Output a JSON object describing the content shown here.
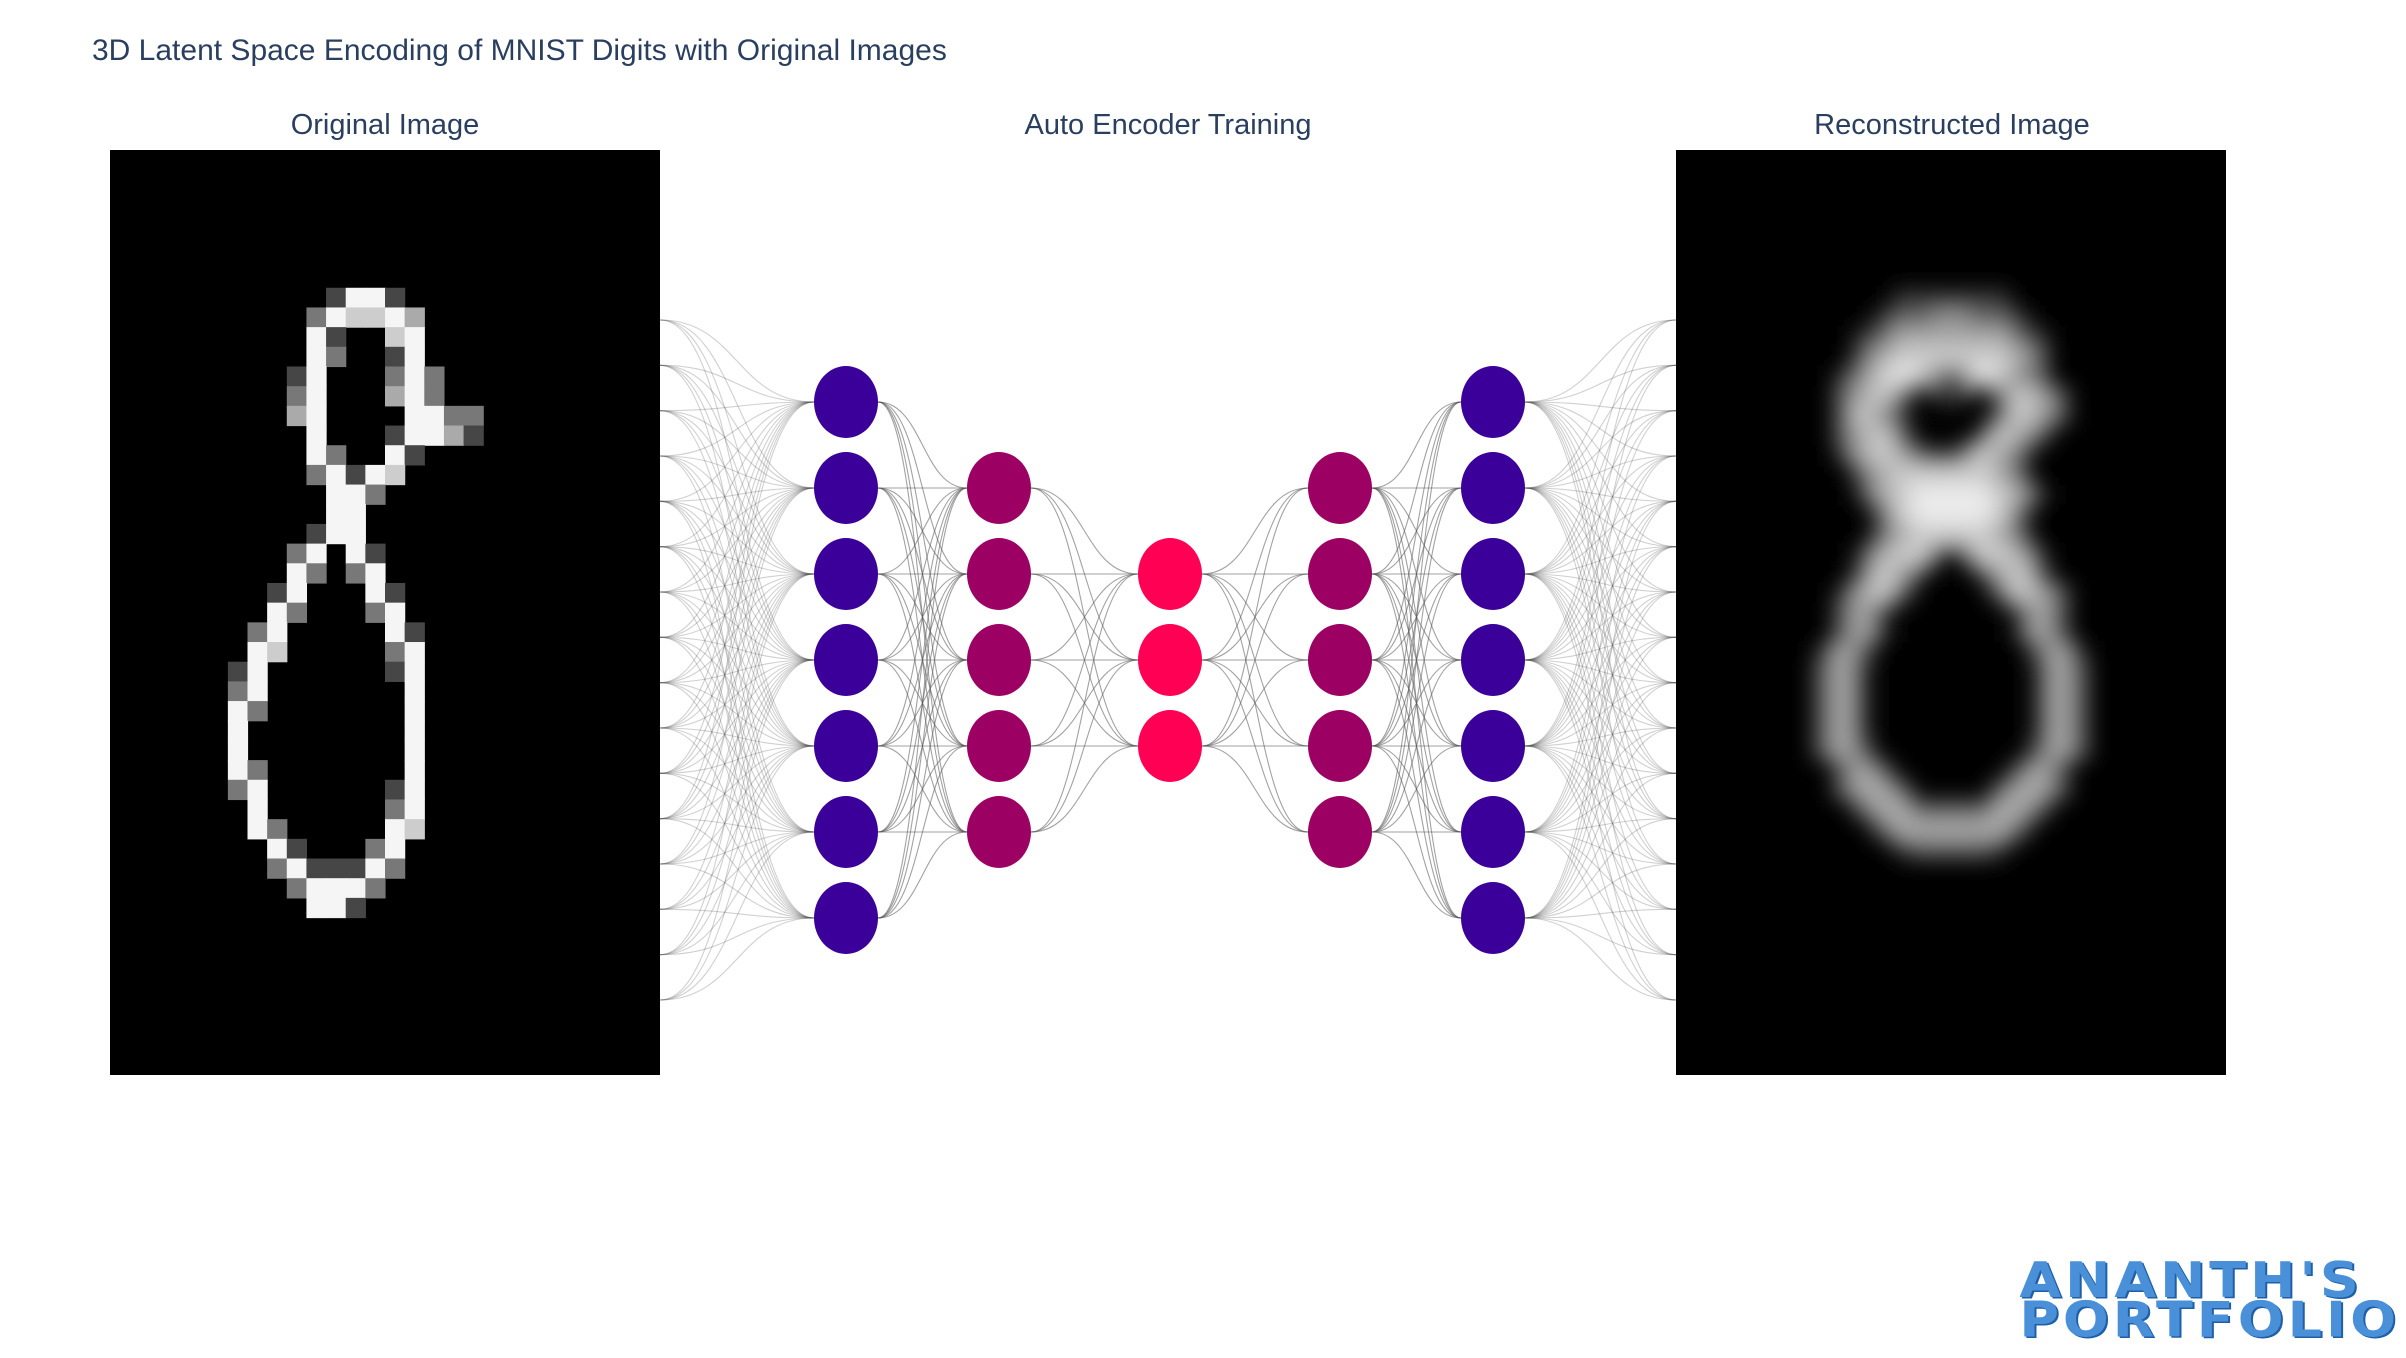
{
  "title": "3D Latent Space Encoding of MNIST Digits with Original Images",
  "panels": {
    "original_title": "Original Image",
    "network_title": "Auto Encoder Training",
    "reconstructed_title": "Reconstructed Image"
  },
  "network": {
    "layers": [
      7,
      5,
      3,
      5,
      7
    ],
    "colors": [
      "#3b0099",
      "#9c0062",
      "#ff0055",
      "#9c0062",
      "#3b0099"
    ],
    "io_fan_count": 16
  },
  "brand": {
    "line1": "ANANTH'S",
    "line2": "PORTFOLIO",
    "color": "#4a90d9"
  }
}
